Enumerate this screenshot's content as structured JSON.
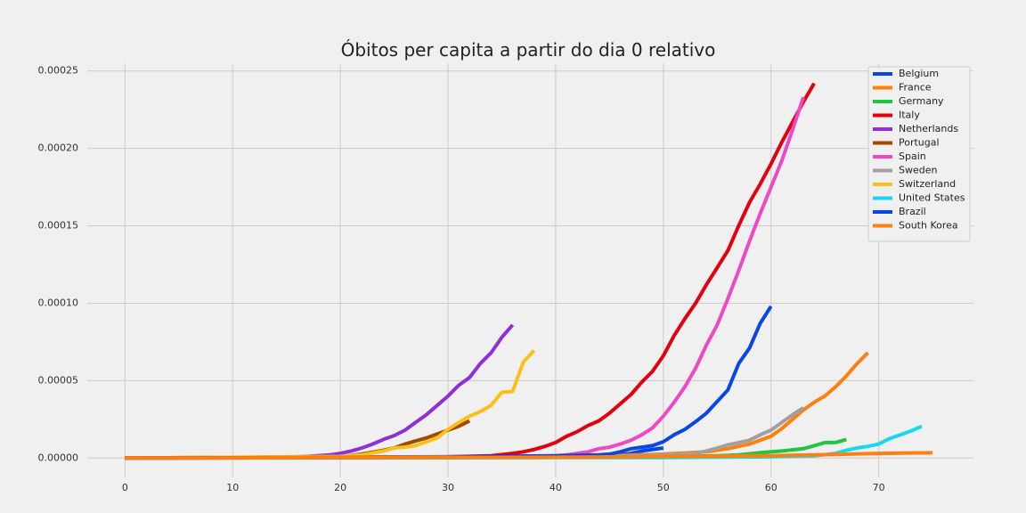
{
  "chart_data": {
    "type": "line",
    "title": "Óbitos per capita a partir do dia 0 relativo",
    "xlabel": "",
    "ylabel": "",
    "xlim": [
      -3.5,
      78.8
    ],
    "ylim": [
      -1.25e-05,
      0.000255
    ],
    "x_ticks": [
      0,
      10,
      20,
      30,
      40,
      50,
      60,
      70
    ],
    "x_tick_labels": [
      "0",
      "10",
      "20",
      "30",
      "40",
      "50",
      "60",
      "70"
    ],
    "y_ticks": [
      0,
      5e-05,
      0.0001,
      0.00015,
      0.0002,
      0.00025
    ],
    "y_tick_labels": [
      "0.00000",
      "0.00005",
      "0.00010",
      "0.00015",
      "0.00020",
      "0.00025"
    ],
    "grid": true,
    "legend_position": "top-right",
    "colors": {
      "background": "#f0f0f0",
      "grid": "#cbcbcb",
      "legend_bg": "#f0f0f0",
      "legend_border": "#cccccc"
    },
    "series": [
      {
        "name": "Belgium",
        "color": "#0a45e6",
        "points": [
          [
            0,
            0
          ],
          [
            30,
            5e-07
          ],
          [
            40,
            8e-07
          ],
          [
            44,
            1.2e-06
          ],
          [
            46,
            2e-06
          ],
          [
            47,
            3e-06
          ],
          [
            48,
            4.5e-06
          ],
          [
            50,
            6.5e-06
          ]
        ]
      },
      {
        "name": "France",
        "color": "#ff7f0e",
        "points": [
          [
            0,
            0
          ],
          [
            40,
            8e-07
          ],
          [
            45,
            1.5e-06
          ],
          [
            50,
            2.5e-06
          ],
          [
            54,
            4e-06
          ],
          [
            56,
            6e-06
          ],
          [
            58,
            9e-06
          ],
          [
            60,
            1.4e-05
          ],
          [
            61,
            1.9e-05
          ],
          [
            62,
            2.5e-05
          ],
          [
            63,
            3.1e-05
          ],
          [
            64,
            3.6e-05
          ],
          [
            65,
            4e-05
          ],
          [
            66,
            4.6e-05
          ],
          [
            67,
            5.3e-05
          ],
          [
            68,
            6.1e-05
          ],
          [
            69,
            6.8e-05
          ]
        ]
      },
      {
        "name": "Germany",
        "color": "#21c443",
        "points": [
          [
            0,
            0
          ],
          [
            40,
            4e-07
          ],
          [
            50,
            8e-07
          ],
          [
            55,
            1.5e-06
          ],
          [
            57,
            2e-06
          ],
          [
            59,
            3.5e-06
          ],
          [
            61,
            4.5e-06
          ],
          [
            63,
            6e-06
          ],
          [
            64,
            8e-06
          ],
          [
            65,
            1e-05
          ],
          [
            66,
            1e-05
          ],
          [
            67,
            1.2e-05
          ]
        ]
      },
      {
        "name": "Italy",
        "color": "#e3000f",
        "points": [
          [
            0,
            0
          ],
          [
            30,
            8e-07
          ],
          [
            34,
            1.5e-06
          ],
          [
            36,
            3e-06
          ],
          [
            37,
            4e-06
          ],
          [
            38,
            5.5e-06
          ],
          [
            39,
            7.5e-06
          ],
          [
            40,
            1e-05
          ],
          [
            41,
            1.4e-05
          ],
          [
            42,
            1.7e-05
          ],
          [
            43,
            2.1e-05
          ],
          [
            44,
            2.4e-05
          ],
          [
            45,
            2.9e-05
          ],
          [
            46,
            3.5e-05
          ],
          [
            47,
            4.1e-05
          ],
          [
            48,
            4.9e-05
          ],
          [
            49,
            5.6e-05
          ],
          [
            50,
            6.6e-05
          ],
          [
            51,
            7.9e-05
          ],
          [
            52,
            9e-05
          ],
          [
            53,
            0.0001
          ],
          [
            54,
            0.000112
          ],
          [
            55,
            0.000123
          ],
          [
            56,
            0.000134
          ],
          [
            57,
            0.00015
          ],
          [
            58,
            0.000165
          ],
          [
            59,
            0.000177
          ],
          [
            60,
            0.00019
          ],
          [
            61,
            0.000204
          ],
          [
            62,
            0.000217
          ],
          [
            63,
            0.00023
          ],
          [
            64,
            0.000242
          ]
        ]
      },
      {
        "name": "Netherlands",
        "color": "#8e2fdb",
        "points": [
          [
            0,
            0
          ],
          [
            15,
            5e-07
          ],
          [
            17,
            1e-06
          ],
          [
            19,
            2e-06
          ],
          [
            20,
            3e-06
          ],
          [
            21,
            4.5e-06
          ],
          [
            22,
            6.5e-06
          ],
          [
            23,
            9e-06
          ],
          [
            24,
            1.2e-05
          ],
          [
            25,
            1.45e-05
          ],
          [
            26,
            1.8e-05
          ],
          [
            27,
            2.3e-05
          ],
          [
            28,
            2.8e-05
          ],
          [
            29,
            3.4e-05
          ],
          [
            30,
            4e-05
          ],
          [
            31,
            4.7e-05
          ],
          [
            32,
            5.2e-05
          ],
          [
            33,
            6.1e-05
          ],
          [
            34,
            6.8e-05
          ],
          [
            35,
            7.8e-05
          ],
          [
            36,
            8.6e-05
          ]
        ]
      },
      {
        "name": "Portugal",
        "color": "#a14a00",
        "points": [
          [
            0,
            0
          ],
          [
            20,
            8e-07
          ],
          [
            22,
            2.5e-06
          ],
          [
            24,
            5e-06
          ],
          [
            25,
            6.5e-06
          ],
          [
            26,
            9e-06
          ],
          [
            27,
            1.1e-05
          ],
          [
            28,
            1.3e-05
          ],
          [
            29,
            1.55e-05
          ],
          [
            30,
            1.8e-05
          ],
          [
            31,
            2.05e-05
          ],
          [
            32,
            2.4e-05
          ]
        ]
      },
      {
        "name": "Spain",
        "color": "#ee49c4",
        "points": [
          [
            0,
            0
          ],
          [
            38,
            1e-06
          ],
          [
            40,
            1.5e-06
          ],
          [
            41,
            2e-06
          ],
          [
            42,
            3e-06
          ],
          [
            43,
            4e-06
          ],
          [
            44,
            6e-06
          ],
          [
            45,
            7e-06
          ],
          [
            46,
            9e-06
          ],
          [
            47,
            1.15e-05
          ],
          [
            48,
            1.5e-05
          ],
          [
            49,
            1.95e-05
          ],
          [
            50,
            2.7e-05
          ],
          [
            51,
            3.6e-05
          ],
          [
            52,
            4.6e-05
          ],
          [
            53,
            5.8e-05
          ],
          [
            54,
            7.3e-05
          ],
          [
            55,
            8.6e-05
          ],
          [
            56,
            0.000103
          ],
          [
            57,
            0.000121
          ],
          [
            58,
            0.00014
          ],
          [
            59,
            0.000158
          ],
          [
            60,
            0.000175
          ],
          [
            61,
            0.000192
          ],
          [
            62,
            0.000212
          ],
          [
            63,
            0.000233
          ]
        ]
      },
      {
        "name": "Sweden",
        "color": "#a0a0a0",
        "points": [
          [
            0,
            0
          ],
          [
            45,
            1e-06
          ],
          [
            50,
            2e-06
          ],
          [
            53,
            3e-06
          ],
          [
            54,
            4.5e-06
          ],
          [
            55,
            6.5e-06
          ],
          [
            56,
            8.5e-06
          ],
          [
            57,
            1e-05
          ],
          [
            58,
            1.15e-05
          ],
          [
            59,
            1.5e-05
          ],
          [
            60,
            1.8e-05
          ],
          [
            61,
            2.3e-05
          ],
          [
            62,
            2.8e-05
          ],
          [
            63,
            3.25e-05
          ]
        ]
      },
      {
        "name": "Switzerland",
        "color": "#fbc015",
        "points": [
          [
            0,
            0
          ],
          [
            20,
            1e-06
          ],
          [
            22,
            2e-06
          ],
          [
            24,
            4.5e-06
          ],
          [
            25,
            6.5e-06
          ],
          [
            26,
            7e-06
          ],
          [
            27,
            8e-06
          ],
          [
            28,
            1.05e-05
          ],
          [
            29,
            1.3e-05
          ],
          [
            30,
            1.85e-05
          ],
          [
            31,
            2.3e-05
          ],
          [
            32,
            2.7e-05
          ],
          [
            33,
            3e-05
          ],
          [
            34,
            3.4e-05
          ],
          [
            35,
            4.25e-05
          ],
          [
            36,
            4.3e-05
          ],
          [
            37,
            6.2e-05
          ],
          [
            38,
            6.95e-05
          ]
        ]
      },
      {
        "name": "United States",
        "color": "#16d8ee",
        "points": [
          [
            0,
            0
          ],
          [
            50,
            3e-07
          ],
          [
            60,
            8e-07
          ],
          [
            64,
            1.5e-06
          ],
          [
            66,
            3e-06
          ],
          [
            67,
            5e-06
          ],
          [
            68,
            6.5e-06
          ],
          [
            69,
            7.5e-06
          ],
          [
            70,
            9e-06
          ],
          [
            71,
            1.25e-05
          ],
          [
            72,
            1.5e-05
          ],
          [
            73,
            1.75e-05
          ],
          [
            74,
            2.05e-05
          ]
        ]
      },
      {
        "name": "Brazil",
        "color": "#0a45e6",
        "points": [
          [
            0,
            0
          ],
          [
            30,
            5e-07
          ],
          [
            35,
            1.2e-06
          ],
          [
            40,
            1.5e-06
          ],
          [
            44,
            2e-06
          ],
          [
            45,
            2.5e-06
          ],
          [
            46,
            4e-06
          ],
          [
            47,
            6e-06
          ],
          [
            48,
            7e-06
          ],
          [
            49,
            8e-06
          ],
          [
            50,
            1.05e-05
          ],
          [
            51,
            1.5e-05
          ],
          [
            52,
            1.85e-05
          ],
          [
            53,
            2.35e-05
          ],
          [
            54,
            2.9e-05
          ],
          [
            55,
            3.65e-05
          ],
          [
            56,
            4.4e-05
          ],
          [
            57,
            6.1e-05
          ],
          [
            58,
            7.1e-05
          ],
          [
            59,
            8.7e-05
          ],
          [
            60,
            9.8e-05
          ]
        ]
      },
      {
        "name": "South Korea",
        "color": "#ff7f0e",
        "points": [
          [
            0,
            0
          ],
          [
            40,
            5e-07
          ],
          [
            50,
            1e-06
          ],
          [
            55,
            1.2e-06
          ],
          [
            58,
            1.5e-06
          ],
          [
            60,
            1.5e-06
          ],
          [
            62,
            1.8e-06
          ],
          [
            64,
            2e-06
          ],
          [
            66,
            2.3e-06
          ],
          [
            68,
            2.7e-06
          ],
          [
            70,
            3e-06
          ],
          [
            72,
            3.2e-06
          ],
          [
            74,
            3.3e-06
          ],
          [
            75,
            3.4e-06
          ]
        ]
      }
    ]
  }
}
